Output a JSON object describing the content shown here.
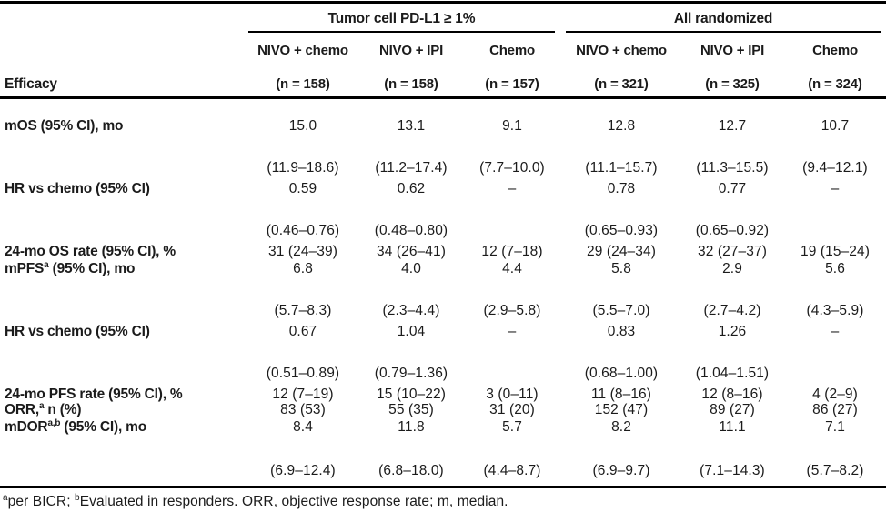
{
  "table": {
    "groups": [
      {
        "label": "Tumor cell PD-L1 ≥ 1%"
      },
      {
        "label": "All randomized"
      }
    ],
    "columns": [
      {
        "arm": "NIVO + chemo",
        "n": "(n = 158)"
      },
      {
        "arm": "NIVO + IPI",
        "n": "(n = 158)"
      },
      {
        "arm": "Chemo",
        "n": "(n = 157)"
      },
      {
        "arm": "NIVO + chemo",
        "n": "(n = 321)"
      },
      {
        "arm": "NIVO + IPI",
        "n": "(n = 325)"
      },
      {
        "arm": "Chemo",
        "n": "(n = 324)"
      }
    ],
    "corner_label": "Efficacy",
    "rows": [
      {
        "label": {
          "pre": "mOS (95% CI), mo",
          "sup": "",
          "post": ""
        },
        "cells": [
          {
            "v": "15.0",
            "ci": "(11.9–18.6)"
          },
          {
            "v": "13.1",
            "ci": "(11.2–17.4)"
          },
          {
            "v": "9.1",
            "ci": "(7.7–10.0)"
          },
          {
            "v": "12.8",
            "ci": "(11.1–15.7)"
          },
          {
            "v": "12.7",
            "ci": "(11.3–15.5)"
          },
          {
            "v": "10.7",
            "ci": "(9.4–12.1)"
          }
        ]
      },
      {
        "label": {
          "pre": "HR vs chemo (95% CI)",
          "sup": "",
          "post": ""
        },
        "cells": [
          {
            "v": "0.59",
            "ci": "(0.46–0.76)"
          },
          {
            "v": "0.62",
            "ci": "(0.48–0.80)"
          },
          {
            "v": "–",
            "ci": ""
          },
          {
            "v": "0.78",
            "ci": "(0.65–0.93)"
          },
          {
            "v": "0.77",
            "ci": "(0.65–0.92)"
          },
          {
            "v": "–",
            "ci": ""
          }
        ]
      },
      {
        "label": {
          "pre": "24-mo OS rate (95% CI), %",
          "sup": "",
          "post": ""
        },
        "cells": [
          {
            "v": "31 (24–39)"
          },
          {
            "v": "34 (26–41)"
          },
          {
            "v": "12 (7–18)"
          },
          {
            "v": "29 (24–34)"
          },
          {
            "v": "32 (27–37)"
          },
          {
            "v": "19 (15–24)"
          }
        ]
      },
      {
        "label": {
          "pre": "mPFS",
          "sup": "a",
          "post": " (95% CI), mo"
        },
        "cells": [
          {
            "v": "6.8",
            "ci": "(5.7–8.3)"
          },
          {
            "v": "4.0",
            "ci": "(2.3–4.4)"
          },
          {
            "v": "4.4",
            "ci": "(2.9–5.8)"
          },
          {
            "v": "5.8",
            "ci": "(5.5–7.0)"
          },
          {
            "v": "2.9",
            "ci": "(2.7–4.2)"
          },
          {
            "v": "5.6",
            "ci": "(4.3–5.9)"
          }
        ]
      },
      {
        "label": {
          "pre": "HR vs chemo (95% CI)",
          "sup": "",
          "post": ""
        },
        "cells": [
          {
            "v": "0.67",
            "ci": "(0.51–0.89)"
          },
          {
            "v": "1.04",
            "ci": "(0.79–1.36)"
          },
          {
            "v": "–",
            "ci": ""
          },
          {
            "v": "0.83",
            "ci": "(0.68–1.00)"
          },
          {
            "v": "1.26",
            "ci": "(1.04–1.51)"
          },
          {
            "v": "–",
            "ci": ""
          }
        ]
      },
      {
        "label": {
          "pre": "24-mo PFS rate (95% CI), %",
          "sup": "",
          "post": ""
        },
        "cells": [
          {
            "v": "12 (7–19)"
          },
          {
            "v": "15 (10–22)"
          },
          {
            "v": "3 (0–11)"
          },
          {
            "v": "11 (8–16)"
          },
          {
            "v": "12 (8–16)"
          },
          {
            "v": "4 (2–9)"
          }
        ]
      },
      {
        "label": {
          "pre": "ORR,",
          "sup": "a",
          "post": " n (%)"
        },
        "cells": [
          {
            "v": "83 (53)"
          },
          {
            "v": "55 (35)"
          },
          {
            "v": "31 (20)"
          },
          {
            "v": "152 (47)"
          },
          {
            "v": "89 (27)"
          },
          {
            "v": "86 (27)"
          }
        ]
      },
      {
        "label": {
          "pre": "mDOR",
          "sup": "a,b",
          "post": " (95% CI), mo"
        },
        "cells": [
          {
            "v": "8.4",
            "ci": "(6.9–12.4)"
          },
          {
            "v": "11.8",
            "ci": "(6.8–18.0)"
          },
          {
            "v": "5.7",
            "ci": "(4.4–8.7)"
          },
          {
            "v": "8.2",
            "ci": "(6.9–9.7)"
          },
          {
            "v": "11.1",
            "ci": "(7.1–14.3)"
          },
          {
            "v": "7.1",
            "ci": "(5.7–8.2)"
          }
        ]
      }
    ],
    "footnote": {
      "sup1": "a",
      "part1": "per BICR; ",
      "sup2": "b",
      "part2": "Evaluated in responders. ORR, objective response rate; m, median."
    }
  }
}
